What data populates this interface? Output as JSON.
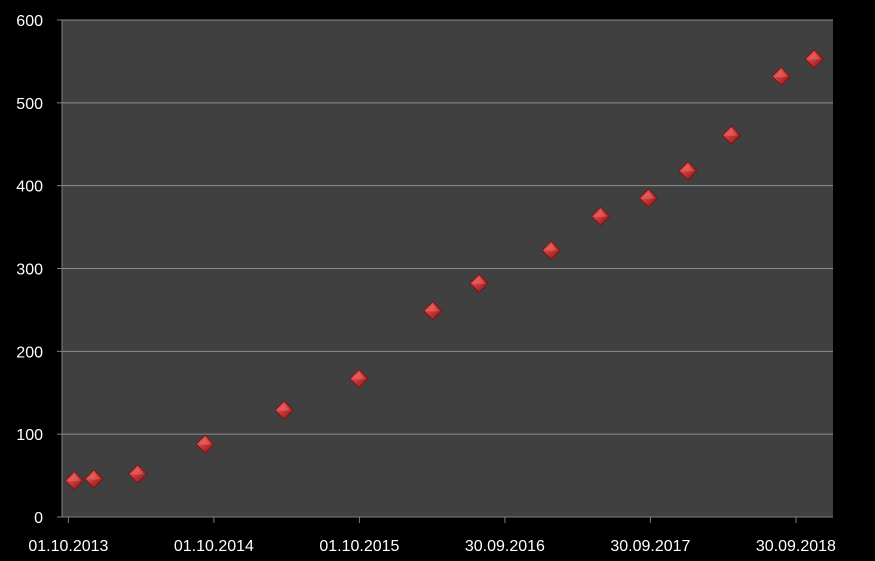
{
  "chart_data": {
    "type": "scatter",
    "title": "",
    "xlabel": "",
    "ylabel": "",
    "ylim": [
      0,
      600
    ],
    "yticks": [
      0,
      100,
      200,
      300,
      400,
      500,
      600
    ],
    "xlim": [
      "2013-09-15",
      "2019-01-01"
    ],
    "xticks": [
      {
        "date": "2013-10-01",
        "label": "01.10.2013"
      },
      {
        "date": "2014-10-01",
        "label": "01.10.2014"
      },
      {
        "date": "2015-10-01",
        "label": "01.10.2015"
      },
      {
        "date": "2016-09-30",
        "label": "30.09.2016"
      },
      {
        "date": "2017-09-30",
        "label": "30.09.2017"
      },
      {
        "date": "2018-09-30",
        "label": "30.09.2018"
      }
    ],
    "grid": "horizontal",
    "legend": "none",
    "colors": {
      "background": "#000000",
      "plot_area": "#404040",
      "gridline": "#8c8c8c",
      "axis": "#7f7f7f",
      "marker": "#d23a3a",
      "marker_dark": "#7a1414",
      "marker_light": "#f07a7a",
      "text": "#ffffff"
    },
    "marker": "diamond",
    "points": [
      {
        "x": "2013-10-16",
        "y": 44
      },
      {
        "x": "2013-12-04",
        "y": 46
      },
      {
        "x": "2014-03-24",
        "y": 52
      },
      {
        "x": "2014-09-09",
        "y": 88
      },
      {
        "x": "2015-03-26",
        "y": 129
      },
      {
        "x": "2015-09-30",
        "y": 167
      },
      {
        "x": "2016-04-02",
        "y": 249
      },
      {
        "x": "2016-07-27",
        "y": 282
      },
      {
        "x": "2017-01-24",
        "y": 322
      },
      {
        "x": "2017-05-28",
        "y": 363
      },
      {
        "x": "2017-09-25",
        "y": 385
      },
      {
        "x": "2018-01-02",
        "y": 418
      },
      {
        "x": "2018-04-21",
        "y": 461
      },
      {
        "x": "2018-08-24",
        "y": 532
      },
      {
        "x": "2018-11-15",
        "y": 553
      }
    ]
  }
}
